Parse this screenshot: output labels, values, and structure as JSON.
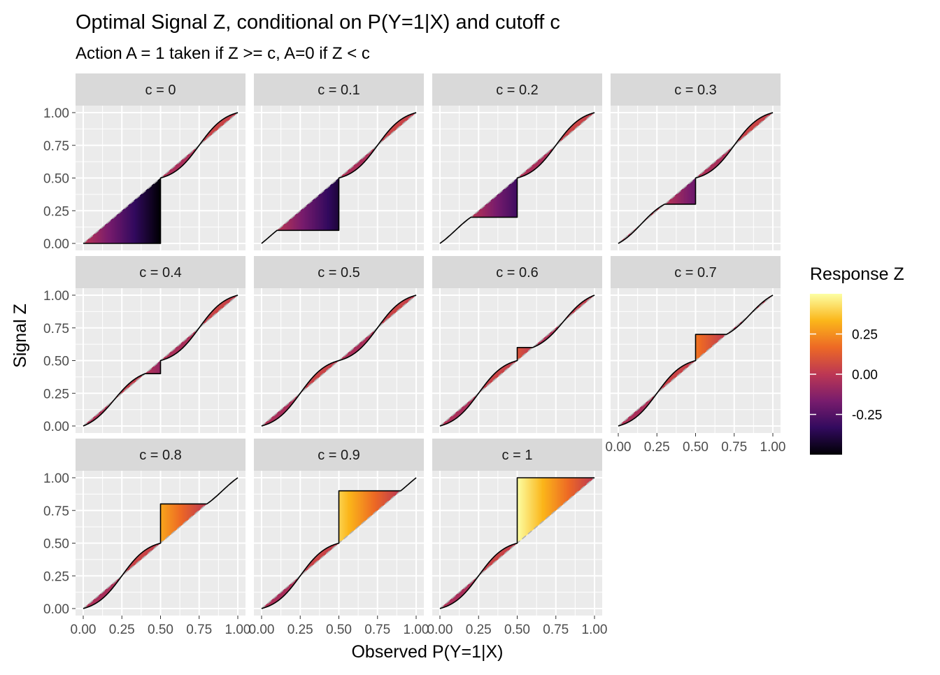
{
  "chart_data": {
    "type": "area",
    "title": "Optimal Signal Z, conditional on P(Y=1|X) and cutoff c",
    "subtitle": "Action A = 1 taken if Z >= c, A=0 if Z < c",
    "xlabel": "Observed P(Y=1|X)",
    "ylabel": "Signal Z",
    "xlim": [
      0,
      1
    ],
    "ylim": [
      0,
      1
    ],
    "x_ticks": [
      "0.00",
      "0.25",
      "0.50",
      "0.75",
      "1.00"
    ],
    "y_ticks": [
      "0.00",
      "0.25",
      "0.50",
      "0.75",
      "1.00"
    ],
    "facet_prefix": "c = ",
    "facets": [
      "0",
      "0.1",
      "0.2",
      "0.3",
      "0.4",
      "0.5",
      "0.6",
      "0.7",
      "0.8",
      "0.9",
      "1"
    ],
    "fill_variable": "Z - P(Y=1|X)",
    "diagonal_reference": "identity line y = x",
    "legend": {
      "title": "Response Z",
      "placement": "right",
      "range": [
        -0.5,
        0.5
      ],
      "ticks": [
        0.25,
        0.0,
        -0.25
      ],
      "tick_labels": [
        "0.25",
        "0.00",
        "-0.25"
      ],
      "colors": [
        "#000004",
        "#320a5e",
        "#781c6d",
        "#bc3754",
        "#ed6925",
        "#fbb61a",
        "#fcffa4"
      ]
    },
    "panel_background": "#ebebeb",
    "strip_background": "#d9d9d9",
    "grid": true,
    "reference_color": "#b0b0b0"
  }
}
